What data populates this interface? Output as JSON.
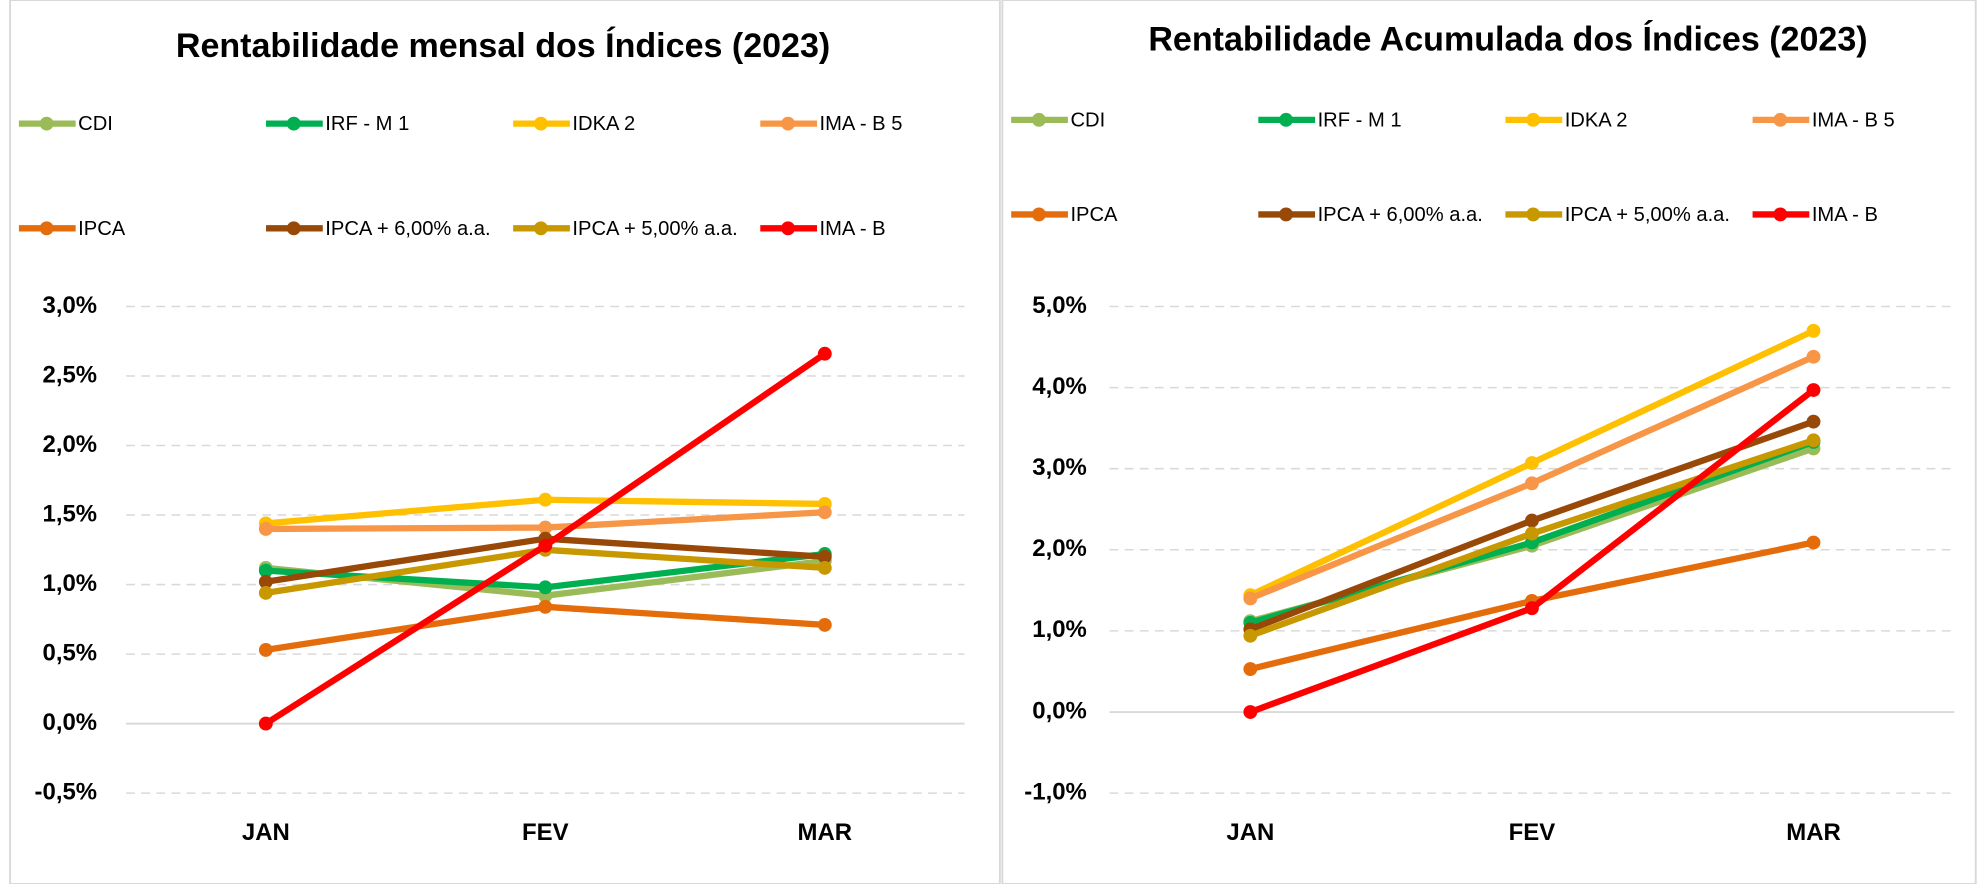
{
  "chart_data": [
    {
      "type": "line",
      "title": "Rentabilidade mensal dos Índices (2023)",
      "categories": [
        "JAN",
        "FEV",
        "MAR"
      ],
      "series": [
        {
          "name": "CDI",
          "color": "#9bbb59",
          "values": [
            1.12,
            0.92,
            1.17
          ]
        },
        {
          "name": "IRF - M 1",
          "color": "#00b050",
          "values": [
            1.1,
            0.98,
            1.22
          ]
        },
        {
          "name": "IDKA 2",
          "color": "#ffc000",
          "values": [
            1.44,
            1.61,
            1.58
          ]
        },
        {
          "name": "IMA - B 5",
          "color": "#f79646",
          "values": [
            1.4,
            1.41,
            1.52
          ]
        },
        {
          "name": "IPCA",
          "color": "#e46c0a",
          "values": [
            0.53,
            0.84,
            0.71
          ]
        },
        {
          "name": "IPCA + 6,00% a.a.",
          "color": "#984807",
          "values": [
            1.02,
            1.33,
            1.2
          ]
        },
        {
          "name": "IPCA + 5,00% a.a.",
          "color": "#c89800",
          "values": [
            0.94,
            1.25,
            1.12
          ]
        },
        {
          "name": "IMA - B",
          "color": "#ff0000",
          "values": [
            0.0,
            1.28,
            2.66
          ]
        }
      ],
      "ylim": [
        -0.5,
        3.0
      ],
      "yticks": [
        {
          "value": -0.5,
          "label": "-0,5%"
        },
        {
          "value": 0,
          "label": "0,0%"
        },
        {
          "value": 0.5,
          "label": "0,5%"
        },
        {
          "value": 1.0,
          "label": "1,0%"
        },
        {
          "value": 1.5,
          "label": "1,5%"
        },
        {
          "value": 2.0,
          "label": "2,0%"
        },
        {
          "value": 2.5,
          "label": "2,5%"
        },
        {
          "value": 3.0,
          "label": "3,0%"
        }
      ],
      "grid": true,
      "legend": "top"
    },
    {
      "type": "line",
      "title": "Rentabilidade Acumulada dos Índices (2023)",
      "categories": [
        "JAN",
        "FEV",
        "MAR"
      ],
      "series": [
        {
          "name": "CDI",
          "color": "#9bbb59",
          "values": [
            1.12,
            2.05,
            3.25
          ]
        },
        {
          "name": "IRF - M 1",
          "color": "#00b050",
          "values": [
            1.1,
            2.09,
            3.33
          ]
        },
        {
          "name": "IDKA 2",
          "color": "#ffc000",
          "values": [
            1.44,
            3.07,
            4.7
          ]
        },
        {
          "name": "IMA - B 5",
          "color": "#f79646",
          "values": [
            1.4,
            2.82,
            4.38
          ]
        },
        {
          "name": "IPCA",
          "color": "#e46c0a",
          "values": [
            0.53,
            1.37,
            2.09
          ]
        },
        {
          "name": "IPCA + 6,00% a.a.",
          "color": "#984807",
          "values": [
            1.02,
            2.36,
            3.58
          ]
        },
        {
          "name": "IPCA + 5,00% a.a.",
          "color": "#c89800",
          "values": [
            0.94,
            2.2,
            3.35
          ]
        },
        {
          "name": "IMA - B",
          "color": "#ff0000",
          "values": [
            0.0,
            1.28,
            3.97
          ]
        }
      ],
      "ylim": [
        -1.0,
        5.0
      ],
      "yticks": [
        {
          "value": -1.0,
          "label": "-1,0%"
        },
        {
          "value": 0,
          "label": "0,0%"
        },
        {
          "value": 1.0,
          "label": "1,0%"
        },
        {
          "value": 2.0,
          "label": "2,0%"
        },
        {
          "value": 3.0,
          "label": "3,0%"
        },
        {
          "value": 4.0,
          "label": "4,0%"
        },
        {
          "value": 5.0,
          "label": "5,0%"
        }
      ],
      "grid": true,
      "legend": "top"
    }
  ]
}
